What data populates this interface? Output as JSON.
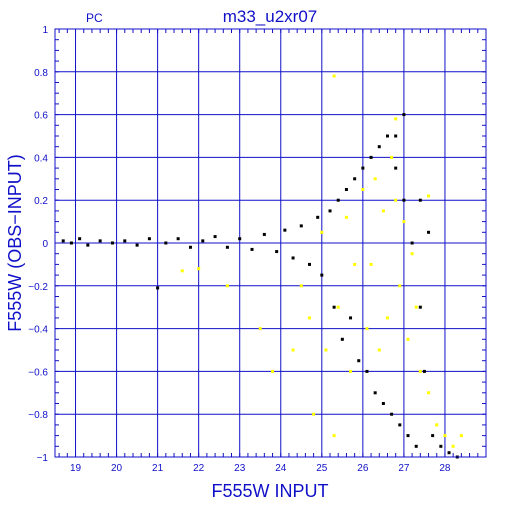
{
  "chart_data": {
    "type": "scatter",
    "title": "m33_u2xr07",
    "corner_label": "PC",
    "xlabel": "F555W INPUT",
    "ylabel": "F555W (OBS−INPUT)",
    "xlim": [
      18.5,
      29.0
    ],
    "ylim": [
      -1,
      1
    ],
    "xticks": [
      19,
      20,
      21,
      22,
      23,
      24,
      25,
      26,
      27,
      28
    ],
    "xtick_labels": [
      "19",
      "20",
      "21",
      "22",
      "23",
      "24",
      "25",
      "26",
      "27",
      "28"
    ],
    "yticks": [
      -1,
      -0.8,
      -0.6,
      -0.4,
      -0.2,
      0,
      0.2,
      0.4,
      0.6,
      0.8,
      1
    ],
    "ytick_labels": [
      "−1",
      "−0.8",
      "−0.6",
      "−0.4",
      "−0.2",
      "0",
      "0.2",
      "0.4",
      "0.6",
      "0.8",
      "1"
    ],
    "grid": true,
    "colors": {
      "axis": "#1010c8",
      "grid": "#1010c8",
      "main": "#000000",
      "highlight": "#ffff00"
    },
    "series": [
      {
        "color": "#000000",
        "points": [
          [
            18.7,
            0.01
          ],
          [
            18.9,
            0.0
          ],
          [
            19.1,
            0.02
          ],
          [
            19.3,
            -0.01
          ],
          [
            19.6,
            0.01
          ],
          [
            19.9,
            0.0
          ],
          [
            20.2,
            0.01
          ],
          [
            20.5,
            -0.01
          ],
          [
            20.8,
            0.02
          ],
          [
            21.0,
            -0.21
          ],
          [
            21.2,
            0.0
          ],
          [
            21.5,
            0.02
          ],
          [
            21.8,
            -0.02
          ],
          [
            22.1,
            0.01
          ],
          [
            22.4,
            0.03
          ],
          [
            22.7,
            -0.02
          ],
          [
            23.0,
            0.02
          ],
          [
            23.3,
            -0.03
          ],
          [
            23.6,
            0.04
          ],
          [
            23.9,
            -0.04
          ],
          [
            24.1,
            0.06
          ],
          [
            24.3,
            -0.07
          ],
          [
            24.5,
            0.08
          ],
          [
            24.7,
            -0.1
          ],
          [
            24.9,
            0.12
          ],
          [
            25.0,
            -0.15
          ],
          [
            25.2,
            0.15
          ],
          [
            25.3,
            -0.3
          ],
          [
            25.4,
            0.2
          ],
          [
            25.5,
            -0.45
          ],
          [
            25.6,
            0.25
          ],
          [
            25.7,
            -0.35
          ],
          [
            25.8,
            0.3
          ],
          [
            25.9,
            -0.55
          ],
          [
            26.0,
            0.35
          ],
          [
            26.1,
            -0.6
          ],
          [
            26.2,
            0.4
          ],
          [
            26.3,
            -0.7
          ],
          [
            26.4,
            0.45
          ],
          [
            26.5,
            -0.75
          ],
          [
            26.6,
            0.5
          ],
          [
            26.7,
            -0.8
          ],
          [
            26.8,
            0.35
          ],
          [
            26.9,
            -0.85
          ],
          [
            27.0,
            0.2
          ],
          [
            27.1,
            -0.9
          ],
          [
            27.2,
            0.0
          ],
          [
            27.3,
            -0.95
          ],
          [
            27.4,
            -0.3
          ],
          [
            27.5,
            -0.6
          ],
          [
            27.7,
            -0.9
          ],
          [
            27.9,
            -0.95
          ],
          [
            28.1,
            -0.98
          ],
          [
            28.3,
            -1.0
          ],
          [
            27.0,
            0.6
          ],
          [
            26.8,
            0.5
          ],
          [
            27.4,
            0.2
          ],
          [
            27.6,
            0.05
          ]
        ]
      },
      {
        "color": "#ffff00",
        "points": [
          [
            21.6,
            -0.13
          ],
          [
            22.0,
            -0.12
          ],
          [
            22.7,
            -0.2
          ],
          [
            23.5,
            -0.4
          ],
          [
            23.8,
            -0.6
          ],
          [
            24.3,
            -0.5
          ],
          [
            24.5,
            -0.2
          ],
          [
            24.7,
            -0.35
          ],
          [
            25.0,
            0.05
          ],
          [
            25.1,
            -0.5
          ],
          [
            25.3,
            0.78
          ],
          [
            25.4,
            -0.3
          ],
          [
            25.6,
            0.12
          ],
          [
            25.7,
            -0.6
          ],
          [
            25.8,
            -0.1
          ],
          [
            26.0,
            0.25
          ],
          [
            26.1,
            -0.4
          ],
          [
            26.2,
            -0.1
          ],
          [
            26.3,
            0.3
          ],
          [
            26.4,
            -0.5
          ],
          [
            26.5,
            0.15
          ],
          [
            26.6,
            -0.35
          ],
          [
            26.7,
            0.4
          ],
          [
            26.8,
            0.2
          ],
          [
            26.9,
            -0.2
          ],
          [
            27.0,
            0.1
          ],
          [
            27.1,
            -0.45
          ],
          [
            27.2,
            -0.05
          ],
          [
            27.3,
            -0.3
          ],
          [
            27.4,
            -0.6
          ],
          [
            27.6,
            -0.7
          ],
          [
            27.8,
            -0.85
          ],
          [
            28.0,
            -0.9
          ],
          [
            28.2,
            -0.95
          ],
          [
            28.4,
            -0.9
          ],
          [
            26.8,
            0.58
          ],
          [
            27.6,
            0.22
          ],
          [
            25.3,
            -0.9
          ],
          [
            24.8,
            -0.8
          ]
        ]
      }
    ]
  }
}
